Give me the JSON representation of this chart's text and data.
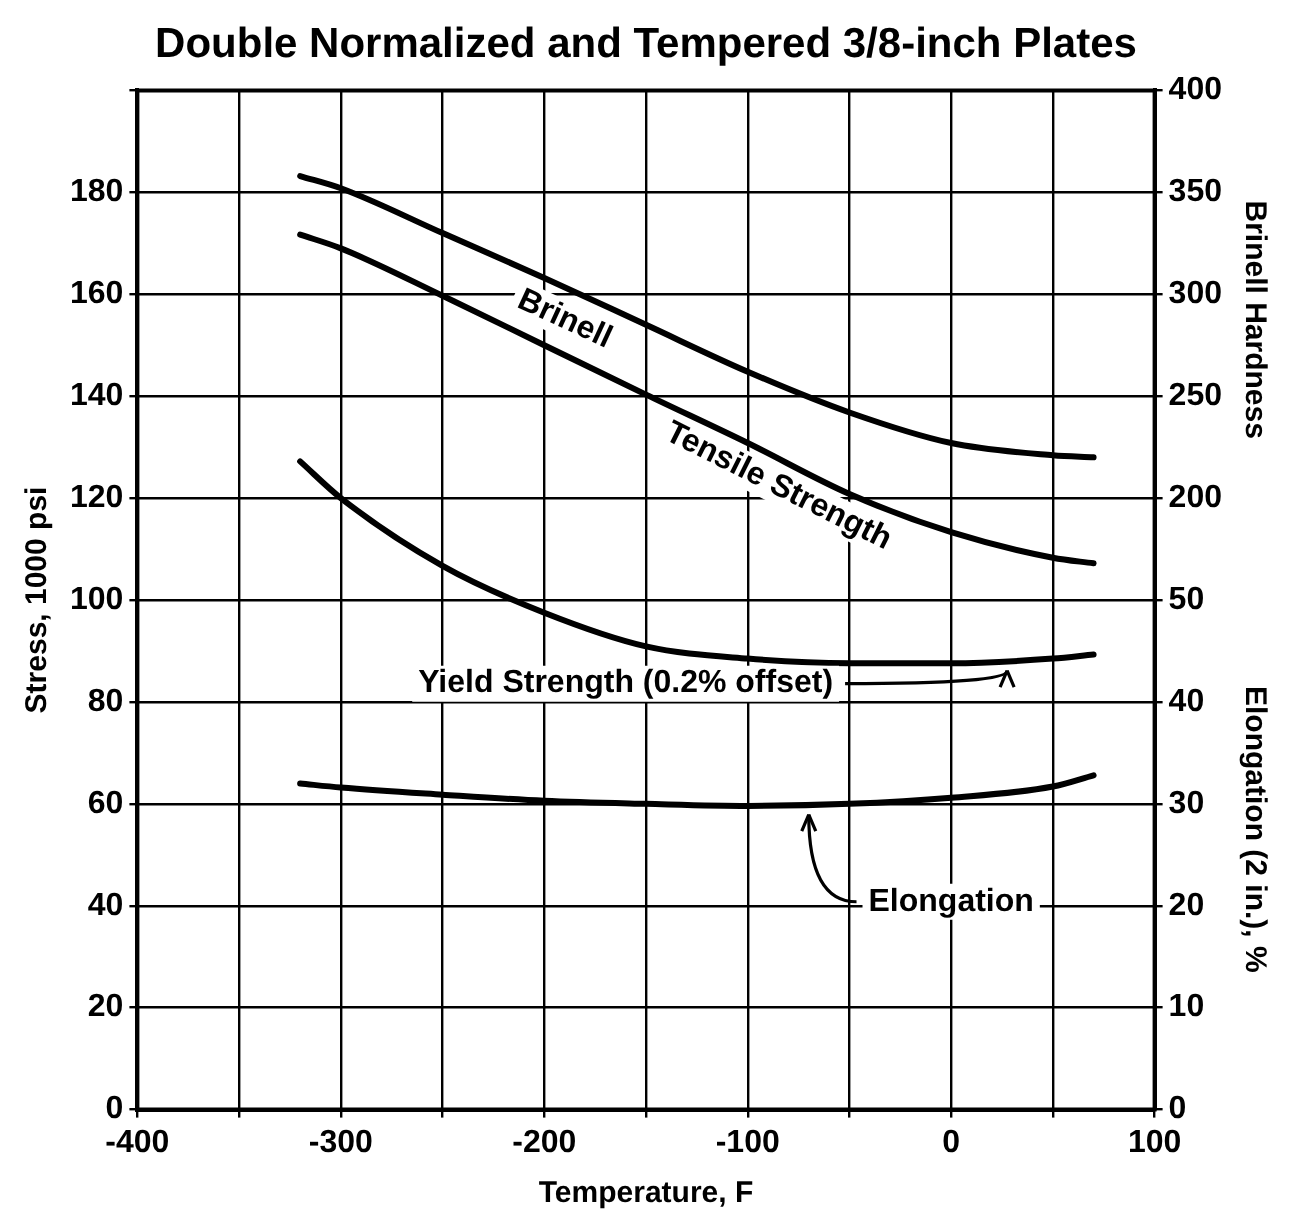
{
  "chart_data": {
    "type": "line",
    "title": "Double Normalized and Tempered 3/8-inch Plates",
    "xlabel": "Temperature, F",
    "ylabel": "Stress, 1000 psi",
    "y2label": "Brinell Hardness",
    "y3label": "Elongation (2 in.), %",
    "x": [
      -320,
      -300,
      -250,
      -200,
      -150,
      -100,
      -50,
      0,
      50,
      70
    ],
    "series": [
      {
        "name": "Brinell",
        "color": "#000000",
        "axis": "y2",
        "values": [
          358,
          352,
          330,
          308,
          285,
          262,
          242,
          227,
          221,
          220
        ]
      },
      {
        "name": "Tensile Strength",
        "color": "#000000",
        "values": [
          171.7,
          169,
          159.7,
          150,
          140.3,
          130.8,
          120.8,
          113.3,
          108.3,
          107.2
        ]
      },
      {
        "name": "Yield Strength (0.2% offset)",
        "color": "#000000",
        "values": [
          127.2,
          120,
          106.7,
          97.5,
          90.9,
          88.5,
          87.6,
          87.6,
          88.5,
          89.3
        ]
      },
      {
        "name": "Elongation",
        "color": "#000000",
        "axis": "y3",
        "values": [
          32,
          31.6,
          30.9,
          30.3,
          30,
          29.8,
          30,
          30.6,
          31.7,
          32.8
        ]
      }
    ],
    "xlim": [
      -400,
      100
    ],
    "xticks": [
      -400,
      {
        "value": -350,
        "label": null
      },
      -300,
      {
        "value": -250,
        "label": null
      },
      -200,
      {
        "value": -150,
        "label": null
      },
      -100,
      {
        "value": -50,
        "label": null
      },
      0,
      {
        "value": 50,
        "label": null
      },
      100
    ],
    "ylim": [
      0,
      200
    ],
    "yticks": [
      0,
      20,
      40,
      60,
      80,
      100,
      120,
      140,
      160,
      180,
      {
        "value": 200,
        "label": null
      }
    ],
    "y2lim": [
      -100,
      400
    ],
    "y2ticks": [
      200,
      250,
      300,
      350,
      400
    ],
    "y3lim": [
      0,
      100
    ],
    "y3ticks": [
      0,
      10,
      20,
      30,
      40,
      50
    ],
    "grid": true,
    "legend": false,
    "marker": "none",
    "line_style": "solid"
  }
}
